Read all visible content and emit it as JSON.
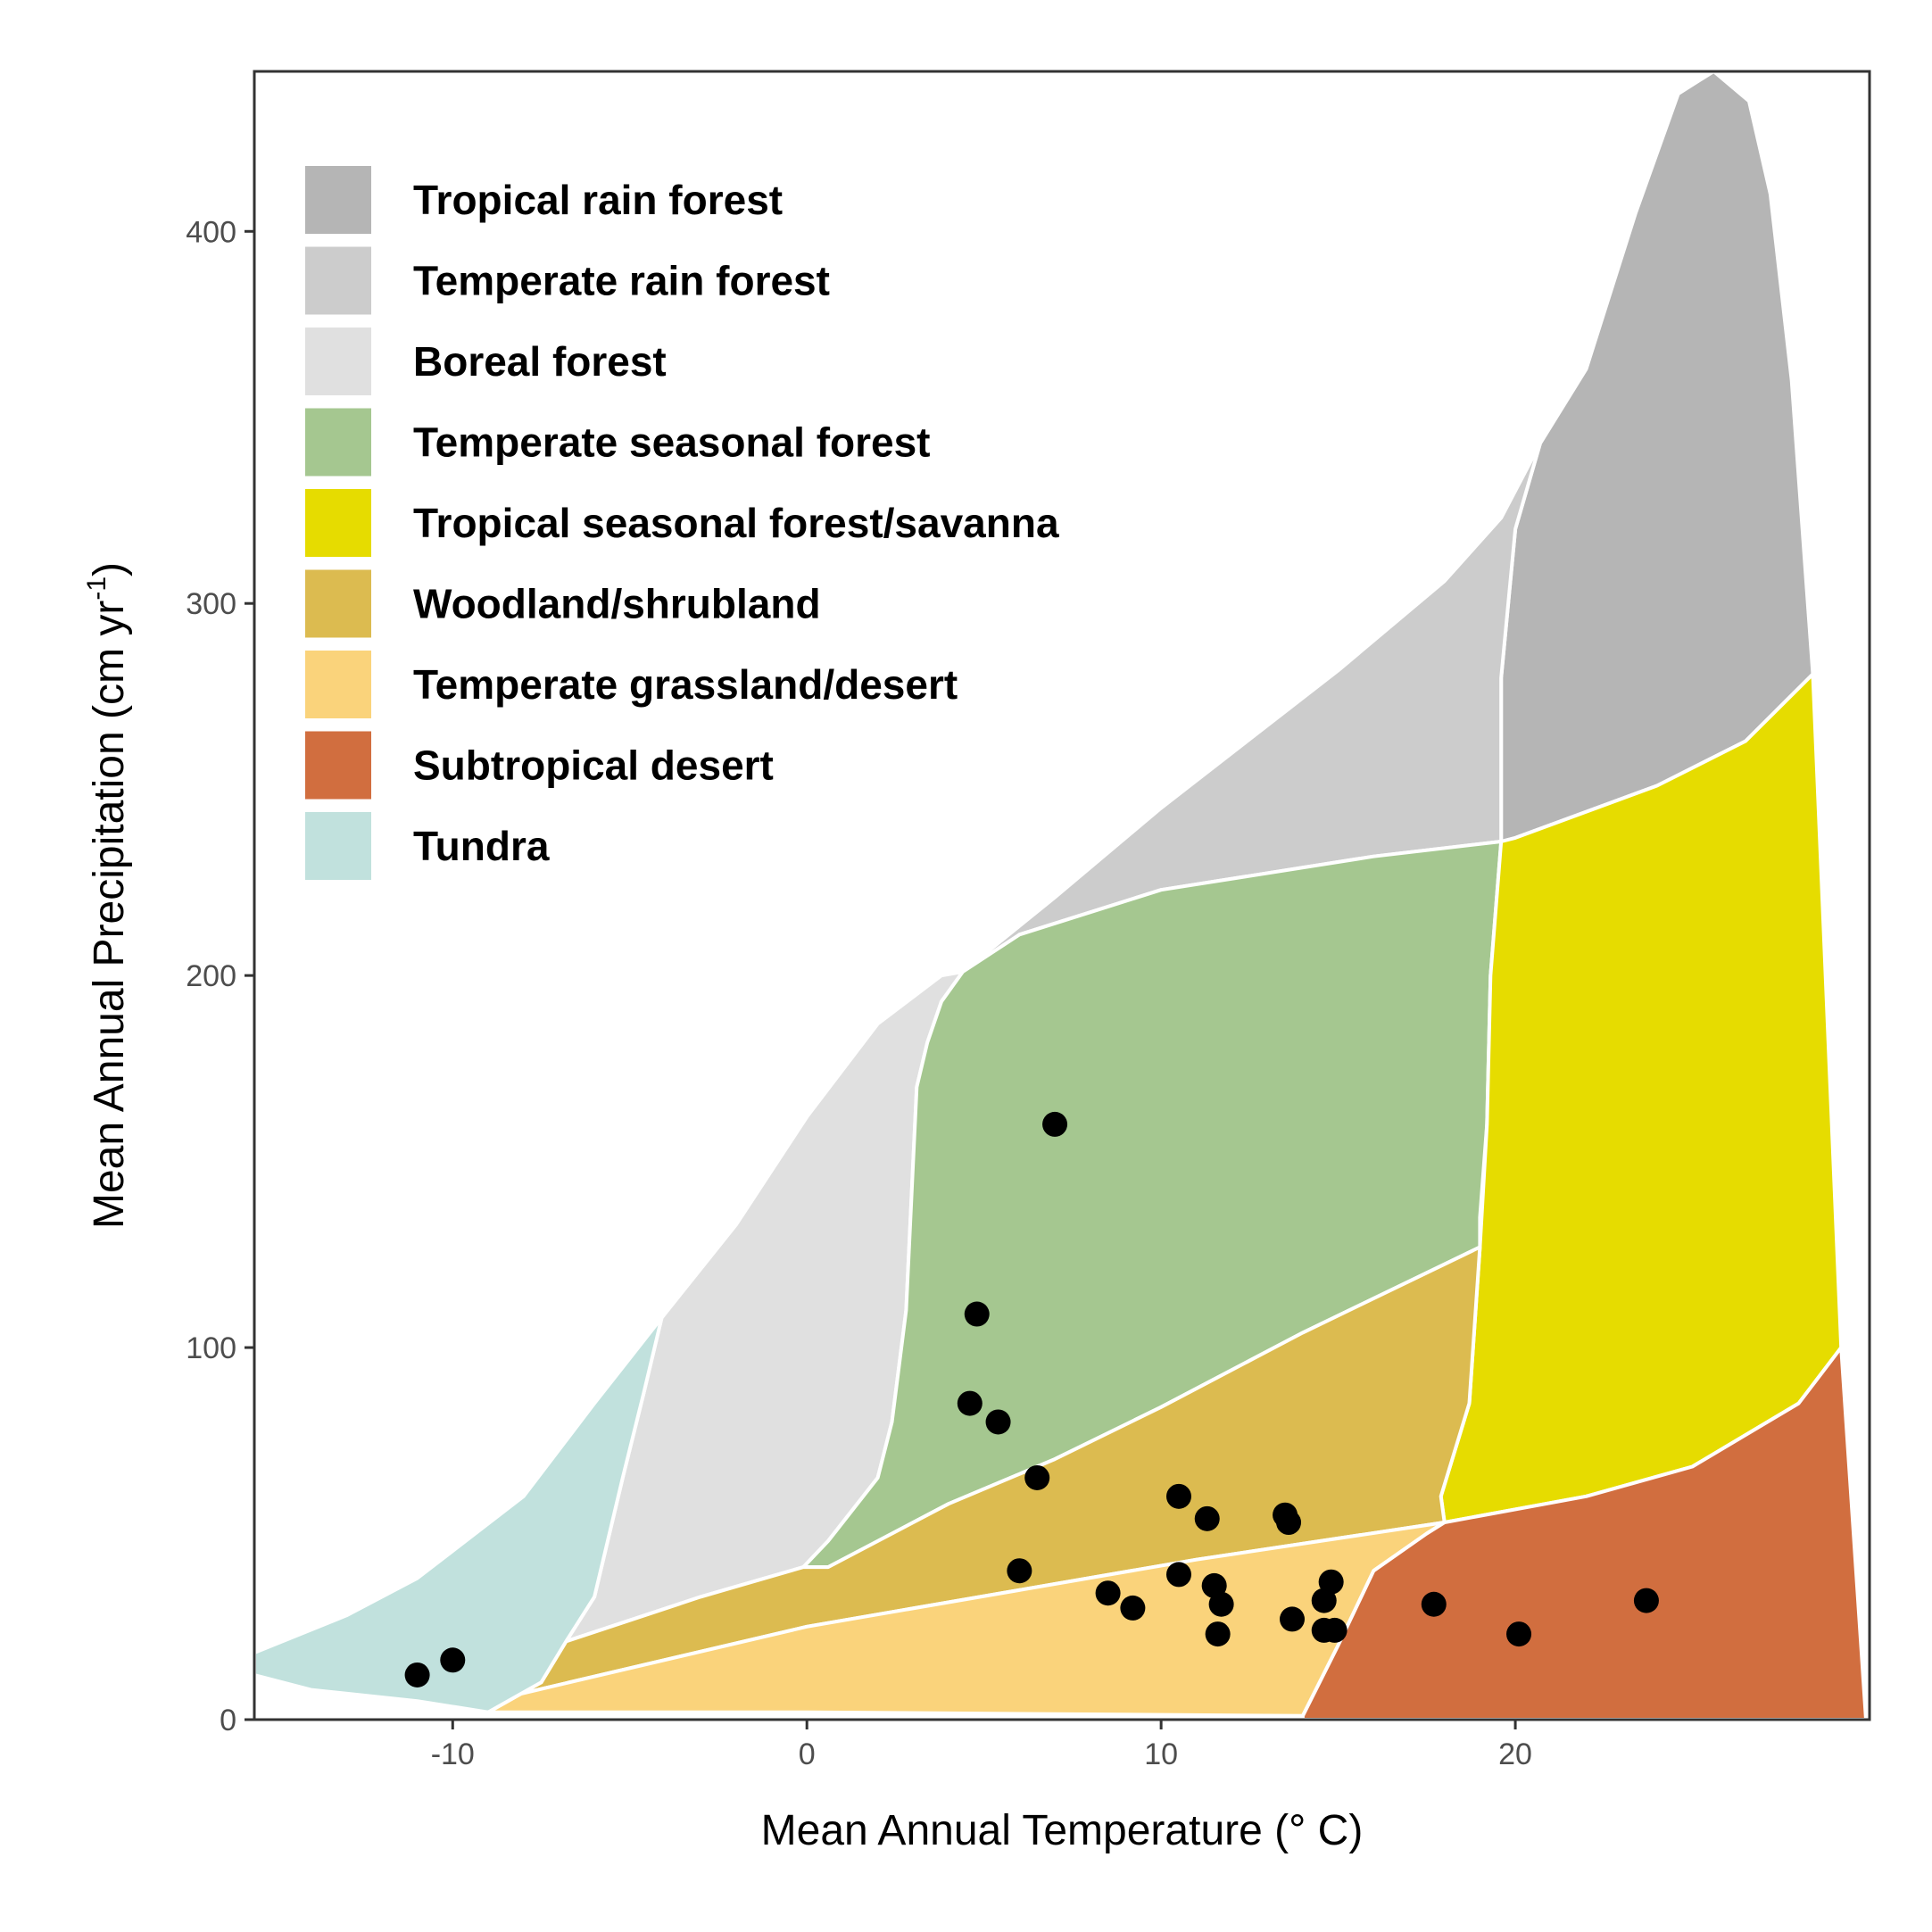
{
  "chart_data": {
    "type": "scatter",
    "xlabel": "Mean Annual Temperature (° C)",
    "ylabel": "Mean Annual Precipitation (cm yr-1)",
    "ylabel_main": "Mean Annual Precipitation (cm yr",
    "ylabel_sup": "-1",
    "ylabel_close": ")",
    "xlim": [
      -15.6,
      30.0
    ],
    "ylim": [
      0,
      443
    ],
    "x_ticks": [
      -10,
      0,
      10,
      20
    ],
    "x_tick_labels": [
      "-10",
      "0",
      "10",
      "20"
    ],
    "y_ticks": [
      0,
      100,
      200,
      300,
      400
    ],
    "y_tick_labels": [
      "0",
      "100",
      "200",
      "300",
      "400"
    ],
    "grid": false,
    "legend_position": "top-left",
    "biomes": [
      {
        "name": "Tropical rain forest",
        "color": "#b5b5b5",
        "outline": [
          [
            19.6,
            236
          ],
          [
            20,
            237
          ],
          [
            24,
            251
          ],
          [
            26.5,
            263
          ],
          [
            28.4,
            281
          ],
          [
            27.8,
            360
          ],
          [
            27.2,
            410
          ],
          [
            26.6,
            435
          ],
          [
            25.6,
            443
          ],
          [
            24.6,
            437
          ],
          [
            23.4,
            405
          ],
          [
            22.0,
            363
          ],
          [
            20.7,
            343
          ],
          [
            20.0,
            320
          ],
          [
            19.6,
            280
          ]
        ]
      },
      {
        "name": "Temperate rain forest",
        "color": "#cccccc",
        "outline": [
          [
            4.4,
            201
          ],
          [
            7,
            221
          ],
          [
            10,
            245
          ],
          [
            15,
            282
          ],
          [
            18,
            306
          ],
          [
            19.6,
            323
          ],
          [
            20.7,
            343
          ],
          [
            20.0,
            320
          ],
          [
            19.6,
            280
          ],
          [
            19.6,
            236
          ],
          [
            16,
            232
          ],
          [
            10,
            223
          ],
          [
            6,
            211
          ],
          [
            4,
            195
          ],
          [
            3.4,
            182
          ],
          [
            3.8,
            193
          ]
        ]
      },
      {
        "name": "Boreal forest",
        "color": "#e0e0e0",
        "outline": [
          [
            -4.1,
            108
          ],
          [
            -2,
            133
          ],
          [
            0,
            162
          ],
          [
            2,
            187
          ],
          [
            3.8,
            200
          ],
          [
            4.4,
            201
          ],
          [
            3.8,
            193
          ],
          [
            3.4,
            182
          ],
          [
            3.1,
            170
          ],
          [
            3.0,
            150
          ],
          [
            2.8,
            110
          ],
          [
            2.4,
            80
          ],
          [
            2.0,
            65
          ],
          [
            0.6,
            48
          ],
          [
            -0.1,
            41
          ],
          [
            -3,
            33
          ],
          [
            -6.8,
            21
          ],
          [
            -6,
            33
          ],
          [
            -5.2,
            65
          ],
          [
            -4.6,
            88
          ]
        ]
      },
      {
        "name": "Temperate seasonal forest",
        "color": "#a5c790",
        "outline": [
          [
            3.4,
            182
          ],
          [
            3.8,
            193
          ],
          [
            4.4,
            201
          ],
          [
            6,
            211
          ],
          [
            10,
            223
          ],
          [
            16,
            232
          ],
          [
            19.6,
            236
          ],
          [
            19.3,
            200
          ],
          [
            19.2,
            160
          ],
          [
            19.0,
            135
          ],
          [
            19.0,
            127
          ],
          [
            14,
            104
          ],
          [
            10,
            84
          ],
          [
            7,
            70
          ],
          [
            4,
            58
          ],
          [
            0.6,
            41
          ],
          [
            -0.1,
            41
          ],
          [
            0.6,
            48
          ],
          [
            2.0,
            65
          ],
          [
            2.4,
            80
          ],
          [
            2.8,
            110
          ],
          [
            3.0,
            150
          ],
          [
            3.1,
            170
          ]
        ]
      },
      {
        "name": "Tropical seasonal forest/savanna",
        "color": "#e6dc00",
        "outline": [
          [
            19.0,
            127
          ],
          [
            19.2,
            160
          ],
          [
            19.3,
            200
          ],
          [
            19.6,
            236
          ],
          [
            20,
            237
          ],
          [
            24,
            251
          ],
          [
            26.5,
            263
          ],
          [
            28.4,
            281
          ],
          [
            29.2,
            100
          ],
          [
            28,
            85
          ],
          [
            25,
            68
          ],
          [
            22,
            60
          ],
          [
            18,
            53
          ],
          [
            17.9,
            60
          ],
          [
            18.7,
            85
          ]
        ]
      },
      {
        "name": "Woodland/shrubland",
        "color": "#dcbb50",
        "outline": [
          [
            -6.8,
            21
          ],
          [
            -3,
            33
          ],
          [
            -0.1,
            41
          ],
          [
            0.6,
            41
          ],
          [
            4,
            58
          ],
          [
            7,
            70
          ],
          [
            10,
            84
          ],
          [
            14,
            104
          ],
          [
            19.0,
            127
          ],
          [
            18.7,
            85
          ],
          [
            17.9,
            60
          ],
          [
            18,
            53
          ],
          [
            11,
            43
          ],
          [
            0,
            25
          ],
          [
            -8.5,
            6
          ],
          [
            -7.5,
            10
          ]
        ]
      },
      {
        "name": "Temperate grassland/desert",
        "color": "#fad37b",
        "outline": [
          [
            -9.0,
            2
          ],
          [
            -7.5,
            10
          ],
          [
            -8.5,
            6
          ],
          [
            0,
            25
          ],
          [
            11,
            43
          ],
          [
            18,
            53
          ],
          [
            17.5,
            50
          ],
          [
            16,
            40
          ],
          [
            15,
            20
          ],
          [
            14.0,
            1
          ],
          [
            0,
            2
          ],
          [
            -9.0,
            2
          ]
        ]
      },
      {
        "name": "Subtropical desert",
        "color": "#d16e3f",
        "outline": [
          [
            14.0,
            1
          ],
          [
            15,
            20
          ],
          [
            16,
            40
          ],
          [
            17.5,
            50
          ],
          [
            18,
            53
          ],
          [
            22,
            60
          ],
          [
            25,
            68
          ],
          [
            28,
            85
          ],
          [
            29.2,
            100
          ],
          [
            29.9,
            0
          ],
          [
            14.0,
            0
          ]
        ]
      },
      {
        "name": "Tundra",
        "color": "#c1e1dd",
        "outline": [
          [
            -15.6,
            18
          ],
          [
            -13,
            28
          ],
          [
            -11,
            38
          ],
          [
            -8,
            60
          ],
          [
            -6,
            85
          ],
          [
            -4.1,
            108
          ],
          [
            -4.6,
            88
          ],
          [
            -5.2,
            65
          ],
          [
            -6,
            33
          ],
          [
            -6.8,
            21
          ],
          [
            -7.5,
            10
          ],
          [
            -9.0,
            2
          ],
          [
            -11,
            5
          ],
          [
            -14,
            8
          ],
          [
            -15.6,
            12
          ]
        ]
      }
    ],
    "points": [
      {
        "x": 7.0,
        "y": 160
      },
      {
        "x": 4.8,
        "y": 109
      },
      {
        "x": 4.6,
        "y": 85
      },
      {
        "x": 5.4,
        "y": 80
      },
      {
        "x": 6.5,
        "y": 65
      },
      {
        "x": 6.0,
        "y": 40
      },
      {
        "x": 8.5,
        "y": 34
      },
      {
        "x": 9.2,
        "y": 30
      },
      {
        "x": 10.5,
        "y": 60
      },
      {
        "x": 10.5,
        "y": 39
      },
      {
        "x": 11.3,
        "y": 54
      },
      {
        "x": 11.5,
        "y": 36
      },
      {
        "x": 11.7,
        "y": 31
      },
      {
        "x": 11.6,
        "y": 23
      },
      {
        "x": 13.5,
        "y": 55
      },
      {
        "x": 13.6,
        "y": 53
      },
      {
        "x": 13.7,
        "y": 27
      },
      {
        "x": 14.6,
        "y": 32
      },
      {
        "x": 14.8,
        "y": 37
      },
      {
        "x": 14.6,
        "y": 24
      },
      {
        "x": 14.9,
        "y": 24
      },
      {
        "x": 17.7,
        "y": 31
      },
      {
        "x": 20.1,
        "y": 23
      },
      {
        "x": 23.7,
        "y": 32
      },
      {
        "x": -11.0,
        "y": 12
      },
      {
        "x": -10.0,
        "y": 16
      }
    ]
  }
}
